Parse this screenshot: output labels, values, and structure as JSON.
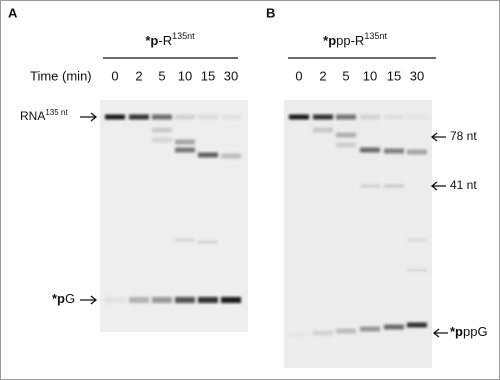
{
  "panels": [
    {
      "label": "A",
      "title": {
        "bold": "*p",
        "plain": "-R",
        "sup": "135nt"
      },
      "time_label": "Time (min)",
      "lanes": [
        "0",
        "2",
        "5",
        "10",
        "15",
        "30"
      ],
      "markers": {
        "rna": {
          "plain": "RNA",
          "sup": "135 nt"
        },
        "product": {
          "bold": "*p",
          "plain": "G"
        }
      }
    },
    {
      "label": "B",
      "title": {
        "bold": "*p",
        "plain": "pp-R",
        "sup": "135nt"
      },
      "lanes": [
        "0",
        "2",
        "5",
        "10",
        "15",
        "30"
      ],
      "markers": {
        "m78": "78 nt",
        "m41": "41 nt",
        "product": {
          "bold": "*p",
          "plain": "ppG"
        }
      }
    }
  ]
}
